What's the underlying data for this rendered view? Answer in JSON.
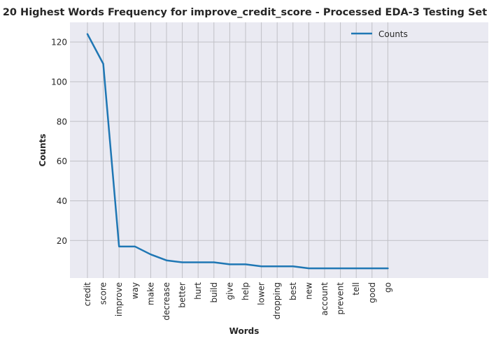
{
  "chart_data": {
    "type": "line",
    "title": "20 Highest Words Frequency for improve_credit_score - Processed EDA-3 Testing Set",
    "xlabel": "Words",
    "ylabel": "Counts",
    "categories": [
      "credit",
      "score",
      "improve",
      "way",
      "make",
      "decrease",
      "better",
      "hurt",
      "build",
      "give",
      "help",
      "lower",
      "dropping",
      "best",
      "new",
      "account",
      "prevent",
      "tell",
      "good",
      "go"
    ],
    "series": [
      {
        "name": "Counts",
        "values": [
          124,
          109,
          17,
          17,
          13,
          10,
          9,
          9,
          9,
          8,
          8,
          7,
          7,
          7,
          6,
          6,
          6,
          6,
          6,
          6
        ]
      }
    ],
    "yticks": [
      "20",
      "40",
      "60",
      "80",
      "100",
      "120"
    ],
    "ylim": [
      1.1,
      129.9
    ],
    "grid": true,
    "legend_position": "top-right",
    "colors": {
      "line": "#1f77b4",
      "plot_background": "#eaeaf2",
      "grid": "#c0c0c6"
    }
  }
}
